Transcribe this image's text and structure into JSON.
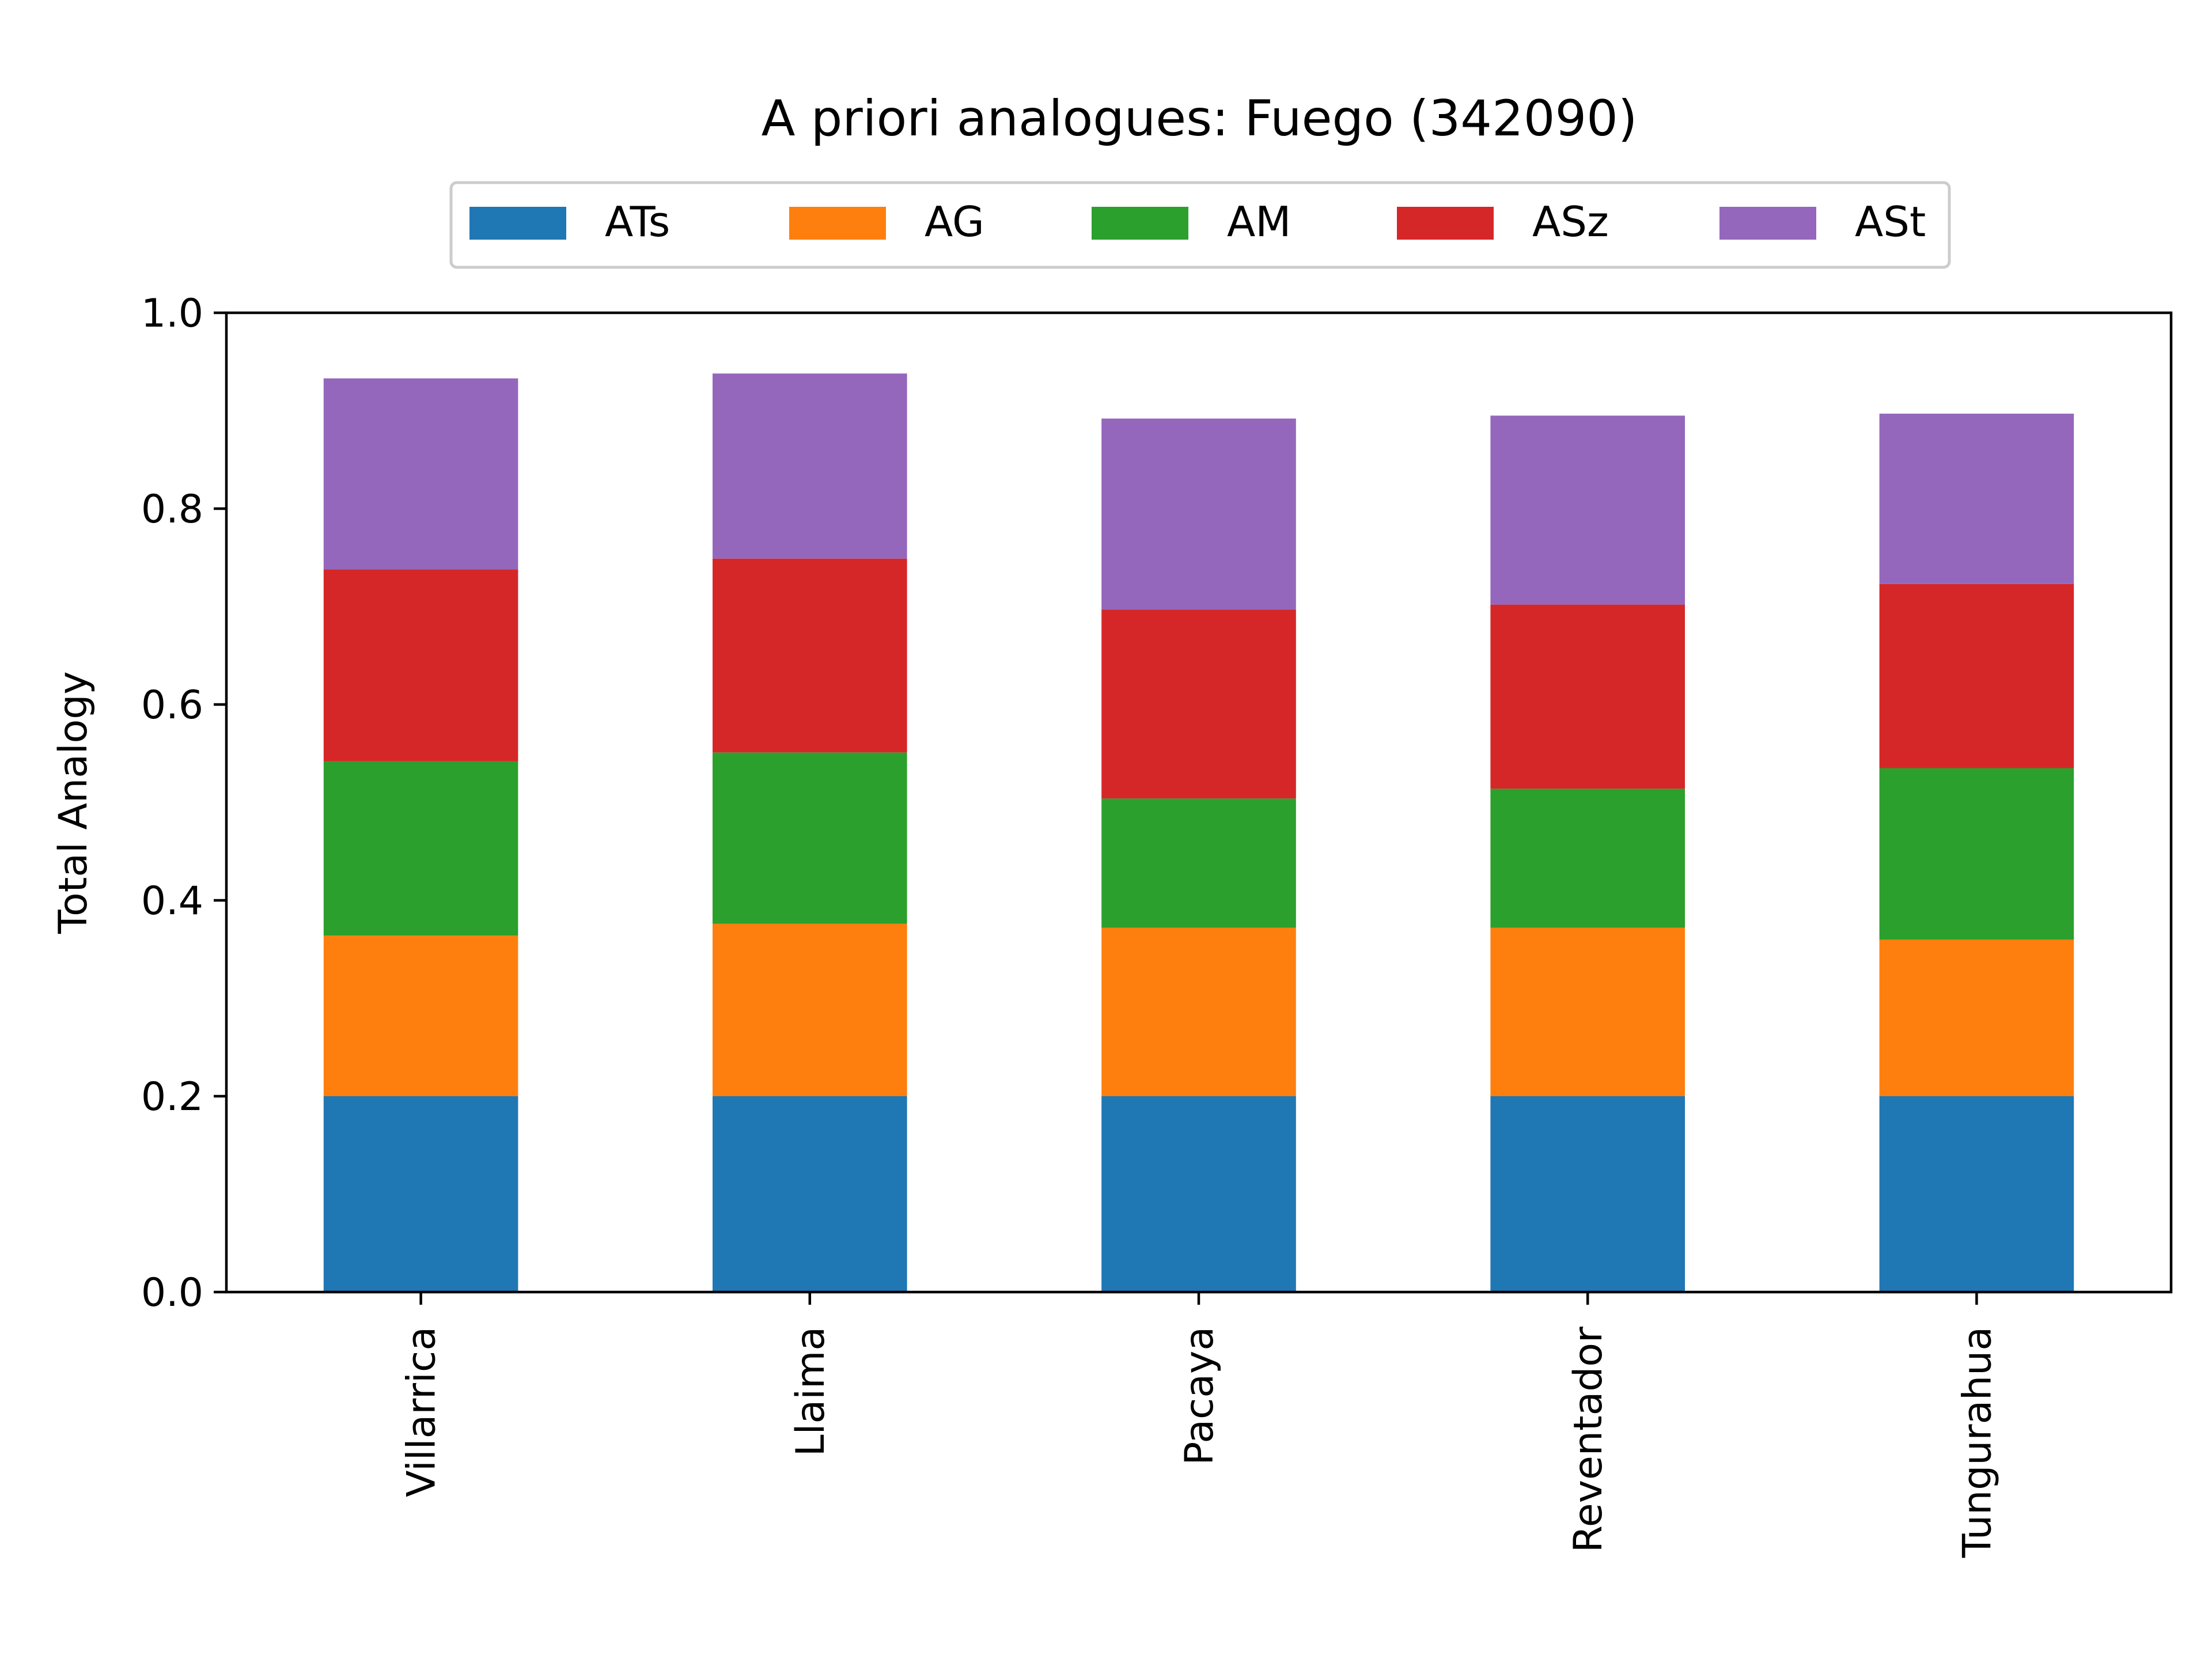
{
  "chart_data": {
    "type": "bar",
    "stacked": true,
    "title": "A priori analogues: Fuego (342090)",
    "ylabel": "Total Analogy",
    "xlabel": "",
    "ylim": [
      0,
      1.0
    ],
    "yticks": [
      "0.0",
      "0.2",
      "0.4",
      "0.6",
      "0.8",
      "1.0"
    ],
    "categories": [
      "Villarrica",
      "Llaima",
      "Pacaya",
      "Reventador",
      "Tungurahua"
    ],
    "legend_position": "top-center",
    "grid": false,
    "series": [
      {
        "name": "ATs",
        "color": "#1f77b4",
        "values": [
          0.2,
          0.2,
          0.2,
          0.2,
          0.2
        ]
      },
      {
        "name": "AG",
        "color": "#ff7f0e",
        "values": [
          0.164,
          0.176,
          0.172,
          0.172,
          0.16
        ]
      },
      {
        "name": "AM",
        "color": "#2ca02c",
        "values": [
          0.178,
          0.175,
          0.132,
          0.142,
          0.175
        ]
      },
      {
        "name": "ASz",
        "color": "#d62728",
        "values": [
          0.196,
          0.198,
          0.193,
          0.188,
          0.188
        ]
      },
      {
        "name": "ASt",
        "color": "#9467bd",
        "values": [
          0.195,
          0.189,
          0.195,
          0.193,
          0.174
        ]
      }
    ]
  }
}
